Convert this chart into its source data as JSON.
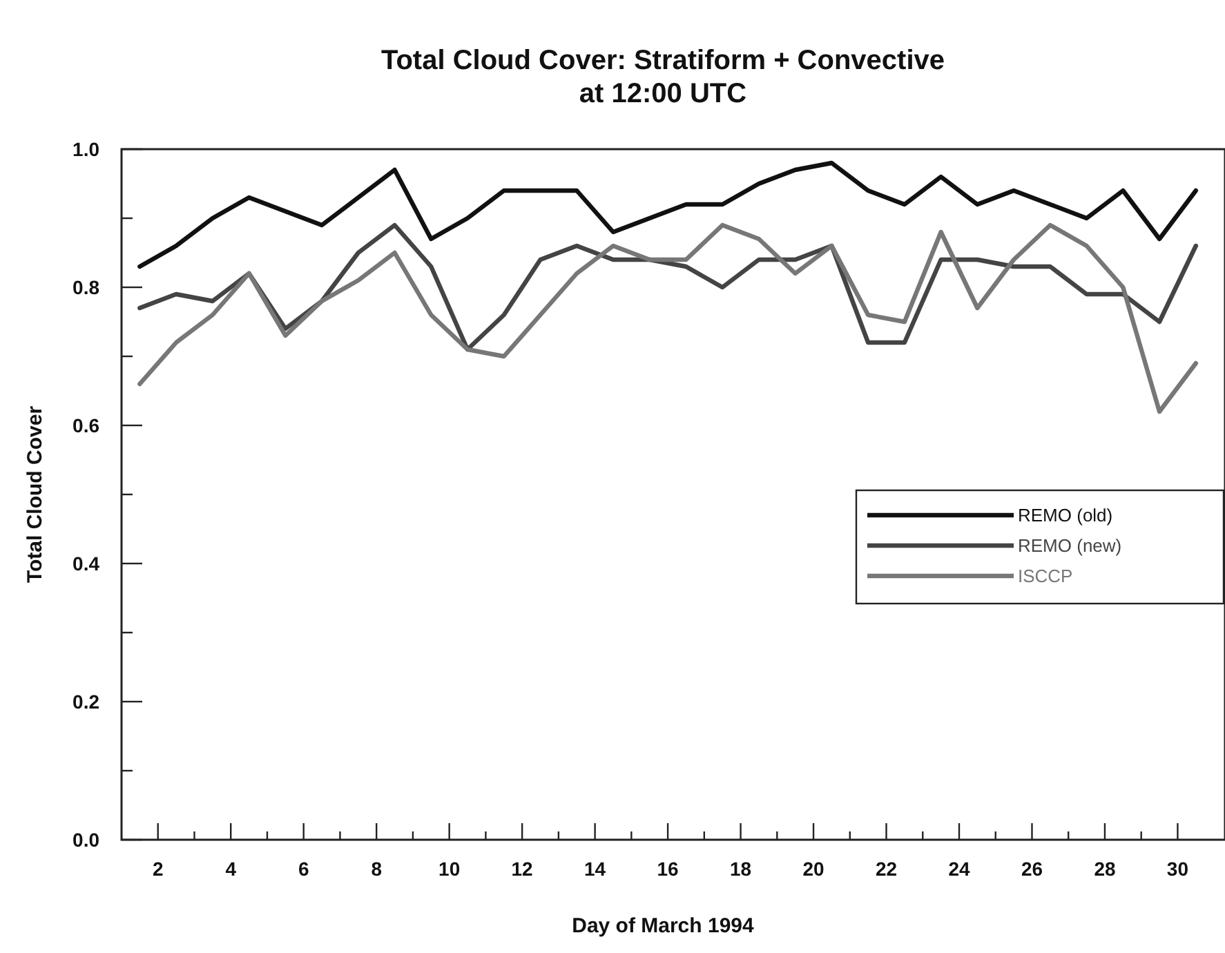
{
  "chart_data": {
    "type": "line",
    "title": "Total Cloud Cover: Stratiform + Convective\nat 12:00 UTC",
    "xlabel": "Day of March 1994",
    "ylabel": "Total Cloud Cover",
    "x": [
      1.5,
      2.5,
      3.5,
      4.5,
      5.5,
      6.5,
      7.5,
      8.5,
      9.5,
      10.5,
      11.5,
      12.5,
      13.5,
      14.5,
      15.5,
      16.5,
      17.5,
      18.5,
      19.5,
      20.5,
      21.5,
      22.5,
      23.5,
      24.5,
      25.5,
      26.5,
      27.5,
      28.5,
      29.5,
      30.5
    ],
    "series": [
      {
        "name": "REMO (old)",
        "color": "#111111",
        "values": [
          0.83,
          0.86,
          0.9,
          0.93,
          0.91,
          0.89,
          0.93,
          0.97,
          0.87,
          0.9,
          0.94,
          0.94,
          0.94,
          0.88,
          0.9,
          0.92,
          0.92,
          0.95,
          0.97,
          0.98,
          0.94,
          0.92,
          0.96,
          0.92,
          0.94,
          0.92,
          0.9,
          0.94,
          0.87,
          0.94
        ]
      },
      {
        "name": "REMO (new)",
        "color": "#444444",
        "values": [
          0.77,
          0.79,
          0.78,
          0.82,
          0.74,
          0.78,
          0.85,
          0.89,
          0.83,
          0.71,
          0.76,
          0.84,
          0.86,
          0.84,
          0.84,
          0.83,
          0.8,
          0.84,
          0.84,
          0.86,
          0.72,
          0.72,
          0.84,
          0.84,
          0.83,
          0.83,
          0.79,
          0.79,
          0.75,
          0.86
        ]
      },
      {
        "name": "ISCCP",
        "color": "#777777",
        "values": [
          0.66,
          0.72,
          0.76,
          0.82,
          0.73,
          0.78,
          0.81,
          0.85,
          0.76,
          0.71,
          0.7,
          0.76,
          0.82,
          0.86,
          0.84,
          0.84,
          0.89,
          0.87,
          0.82,
          0.86,
          0.76,
          0.75,
          0.88,
          0.77,
          0.84,
          0.89,
          0.86,
          0.8,
          0.62,
          0.69
        ]
      }
    ],
    "xlim": [
      1,
      31.3
    ],
    "xticks": [
      2,
      {
        "value": 3,
        "label": null
      },
      4,
      {
        "value": 5,
        "label": null
      },
      6,
      {
        "value": 7,
        "label": null
      },
      8,
      {
        "value": 9,
        "label": null
      },
      10,
      {
        "value": 11,
        "label": null
      },
      12,
      {
        "value": 13,
        "label": null
      },
      14,
      {
        "value": 15,
        "label": null
      },
      16,
      {
        "value": 17,
        "label": null
      },
      18,
      {
        "value": 19,
        "label": null
      },
      20,
      {
        "value": 21,
        "label": null
      },
      22,
      {
        "value": 23,
        "label": null
      },
      24,
      {
        "value": 25,
        "label": null
      },
      26,
      {
        "value": 27,
        "label": null
      },
      28,
      {
        "value": 29,
        "label": null
      },
      30
    ],
    "ylim": [
      0,
      1
    ],
    "yticks": [
      {
        "value": 0,
        "label": "0.0"
      },
      {
        "value": 0.1,
        "label": null
      },
      {
        "value": 0.2,
        "label": "0.2"
      },
      {
        "value": 0.3,
        "label": null
      },
      {
        "value": 0.4,
        "label": "0.4"
      },
      {
        "value": 0.5,
        "label": null
      },
      {
        "value": 0.6,
        "label": "0.6"
      },
      {
        "value": 0.7,
        "label": null
      },
      {
        "value": 0.8,
        "label": "0.8"
      },
      {
        "value": 0.9,
        "label": null
      },
      {
        "value": 1,
        "label": "1.0"
      }
    ],
    "grid": false,
    "legend": "right",
    "marker": "none",
    "line_style": "solid"
  }
}
